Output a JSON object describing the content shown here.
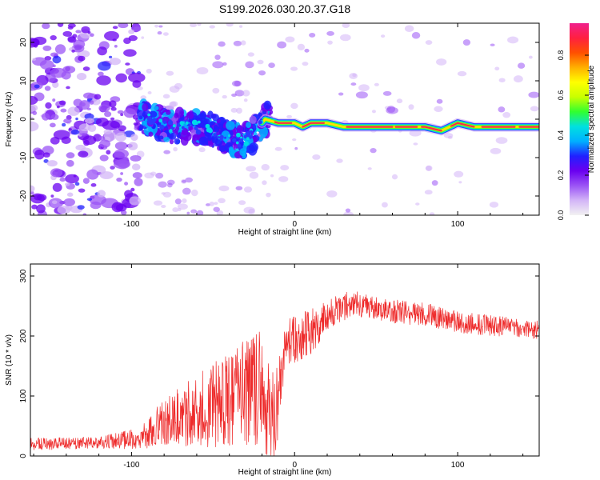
{
  "title": "S199.2026.030.20.37.G18",
  "chart_data": [
    {
      "type": "heatmap",
      "xlabel": "Height of straight line (km)",
      "ylabel": "Frequency (Hz)",
      "xlim": [
        -162,
        150
      ],
      "ylim": [
        -25,
        25
      ],
      "xticks": [
        -100,
        0,
        100
      ],
      "yticks": [
        -20,
        -10,
        0,
        10,
        20
      ],
      "colorbar": {
        "label": "Normalized spectral amplitude",
        "range": [
          0,
          0.96
        ],
        "ticks": [
          0.0,
          0.2,
          0.4,
          0.6,
          0.8
        ],
        "colors": [
          "#f2f2f2",
          "#d3b5f7",
          "#9b54f5",
          "#6a00f0",
          "#2020ff",
          "#00b0ff",
          "#00e0e0",
          "#30ff30",
          "#c8ff00",
          "#ffff00",
          "#ffb000",
          "#ff5000",
          "#ff2040",
          "#f0208c"
        ]
      },
      "ridge_frequency": [
        {
          "x": -90,
          "y": 0
        },
        {
          "x": -75,
          "y": -2
        },
        {
          "x": -60,
          "y": -2
        },
        {
          "x": -50,
          "y": -3
        },
        {
          "x": -40,
          "y": -5
        },
        {
          "x": -30,
          "y": -6
        },
        {
          "x": -22,
          "y": -2
        },
        {
          "x": -18,
          "y": 0
        },
        {
          "x": -10,
          "y": -1
        },
        {
          "x": 0,
          "y": -1
        },
        {
          "x": 5,
          "y": -2
        },
        {
          "x": 10,
          "y": -1
        },
        {
          "x": 20,
          "y": -1
        },
        {
          "x": 30,
          "y": -2
        },
        {
          "x": 40,
          "y": -2
        },
        {
          "x": 60,
          "y": -2
        },
        {
          "x": 80,
          "y": -2
        },
        {
          "x": 90,
          "y": -3
        },
        {
          "x": 100,
          "y": -1
        },
        {
          "x": 110,
          "y": -2
        },
        {
          "x": 150,
          "y": -2
        }
      ]
    },
    {
      "type": "line",
      "xlabel": "Height of straight line (km)",
      "ylabel": "SNR (10 * v/v)",
      "xlim": [
        -162,
        150
      ],
      "ylim": [
        0,
        320
      ],
      "xticks": [
        -100,
        0,
        100
      ],
      "yticks": [
        0,
        100,
        200,
        300
      ],
      "color": "#ee2b2b",
      "envelope": [
        {
          "x": -162,
          "mean": 20,
          "spread": 10
        },
        {
          "x": -120,
          "mean": 22,
          "spread": 10
        },
        {
          "x": -95,
          "mean": 30,
          "spread": 18
        },
        {
          "x": -80,
          "mean": 55,
          "spread": 40
        },
        {
          "x": -60,
          "mean": 75,
          "spread": 60
        },
        {
          "x": -40,
          "mean": 95,
          "spread": 80
        },
        {
          "x": -22,
          "mean": 110,
          "spread": 100
        },
        {
          "x": -12,
          "mean": 60,
          "spread": 80
        },
        {
          "x": -6,
          "mean": 185,
          "spread": 40
        },
        {
          "x": 0,
          "mean": 195,
          "spread": 40
        },
        {
          "x": 10,
          "mean": 205,
          "spread": 40
        },
        {
          "x": 20,
          "mean": 235,
          "spread": 25
        },
        {
          "x": 35,
          "mean": 255,
          "spread": 22
        },
        {
          "x": 50,
          "mean": 245,
          "spread": 20
        },
        {
          "x": 80,
          "mean": 235,
          "spread": 20
        },
        {
          "x": 110,
          "mean": 220,
          "spread": 18
        },
        {
          "x": 150,
          "mean": 210,
          "spread": 15
        }
      ]
    }
  ]
}
